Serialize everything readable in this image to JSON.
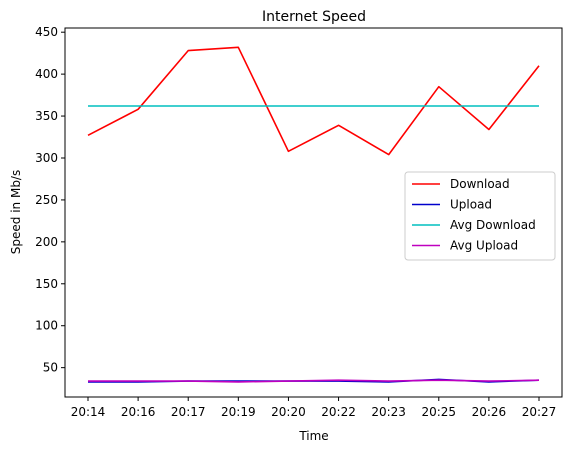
{
  "chart_data": {
    "type": "line",
    "title": "Internet Speed",
    "xlabel": "Time",
    "ylabel": "Speed in Mb/s",
    "categories": [
      "20:14",
      "20:16",
      "20:17",
      "20:19",
      "20:20",
      "20:22",
      "20:23",
      "20:25",
      "20:26",
      "20:27"
    ],
    "ylim": [
      15,
      455
    ],
    "yticks": [
      50,
      100,
      150,
      200,
      250,
      300,
      350,
      400,
      450
    ],
    "grid": false,
    "legend_position": "center-right",
    "series": [
      {
        "name": "Download",
        "color": "#ff0000",
        "values": [
          327,
          358,
          428,
          432,
          308,
          339,
          304,
          385,
          334,
          410
        ]
      },
      {
        "name": "Upload",
        "color": "#0000cc",
        "values": [
          33,
          33,
          34,
          34,
          34,
          34,
          33,
          36,
          33,
          35
        ]
      },
      {
        "name": "Avg Download",
        "color": "#00bfbf",
        "values": [
          362,
          362,
          362,
          362,
          362,
          362,
          362,
          362,
          362,
          362
        ]
      },
      {
        "name": "Avg Upload",
        "color": "#bf00bf",
        "values": [
          34,
          34,
          34,
          33,
          34,
          35,
          34,
          35,
          34,
          35
        ]
      }
    ]
  }
}
